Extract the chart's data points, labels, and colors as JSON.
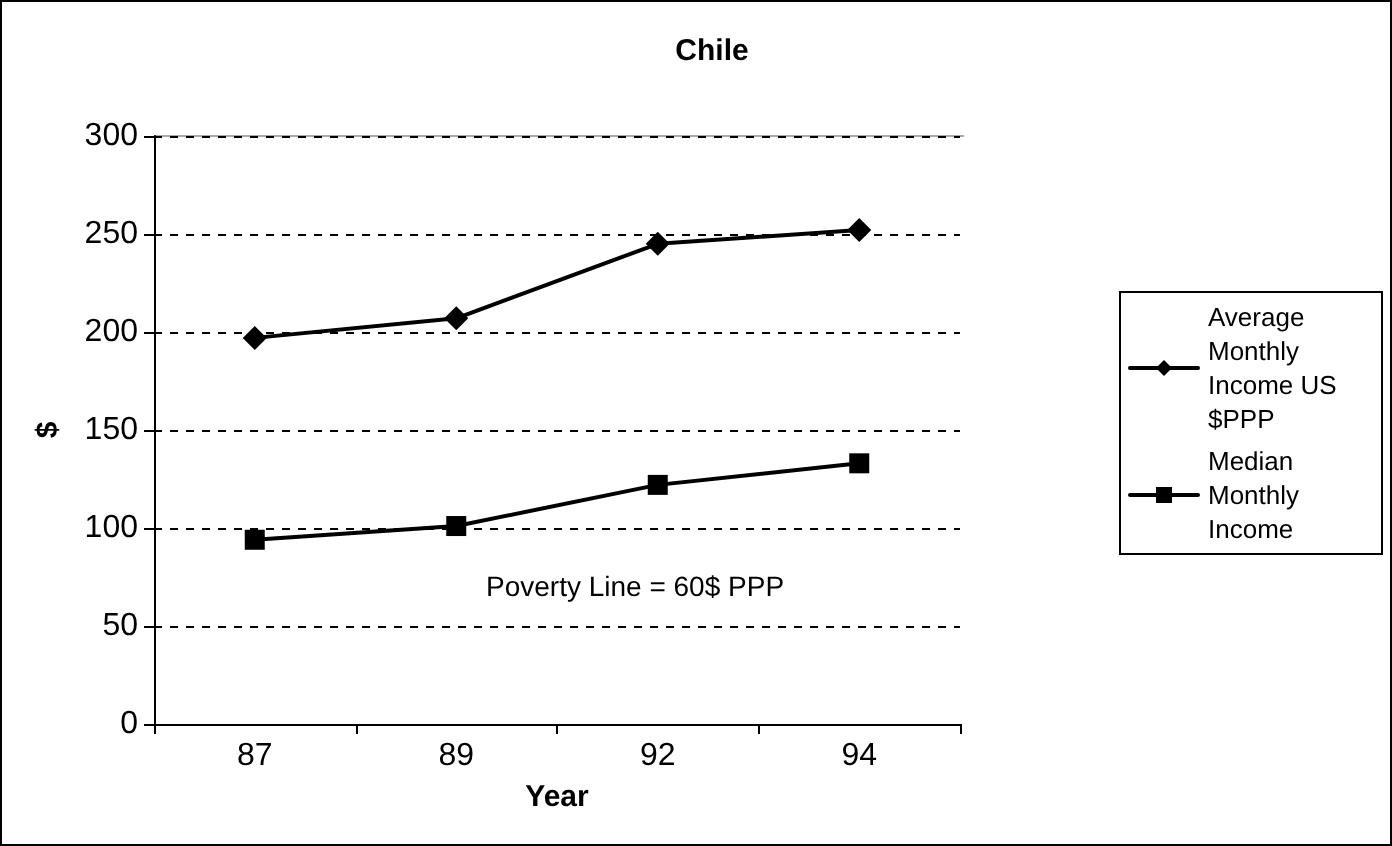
{
  "chart_data": {
    "type": "line",
    "title": "Chile",
    "xlabel": "Year",
    "ylabel": "$",
    "categories": [
      "87",
      "89",
      "92",
      "94"
    ],
    "series": [
      {
        "name": "Average Monthly Income US $PPP",
        "color": "#000000",
        "marker": "diamond",
        "values": [
          197,
          207,
          245,
          252
        ]
      },
      {
        "name": "Median Monthly Income",
        "color": "#000000",
        "marker": "square",
        "values": [
          94,
          101,
          122,
          133
        ]
      }
    ],
    "ylim": [
      0,
      300
    ],
    "yticks": [
      0,
      50,
      100,
      150,
      200,
      250,
      300
    ],
    "grid": "y",
    "legend": "right",
    "line_style": "solid",
    "annotations": [
      "Poverty Line = 60$ PPP"
    ]
  }
}
